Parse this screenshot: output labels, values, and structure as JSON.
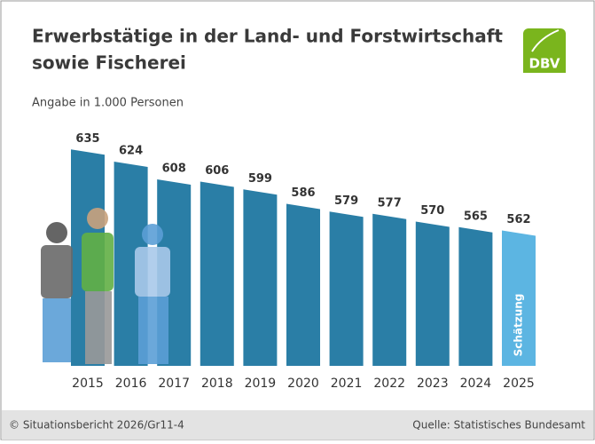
{
  "chart_data": {
    "type": "bar",
    "title_lines": [
      "Erwerbstätige in der Land- und Forstwirtschaft",
      "sowie Fischerei"
    ],
    "subtitle": "Angabe in 1.000 Personen",
    "logo": "DBV",
    "categories": [
      "2015",
      "2016",
      "2017",
      "2018",
      "2019",
      "2020",
      "2021",
      "2022",
      "2023",
      "2024",
      "2025"
    ],
    "values": [
      635,
      624,
      608,
      606,
      599,
      586,
      579,
      577,
      570,
      565,
      562
    ],
    "colors": [
      "#2a7ea6",
      "#2a7ea6",
      "#2a7ea6",
      "#2a7ea6",
      "#2a7ea6",
      "#2a7ea6",
      "#2a7ea6",
      "#2a7ea6",
      "#2a7ea6",
      "#2a7ea6",
      "#5cb5e2"
    ],
    "annotation": "Schätzung",
    "ylim": [
      440,
      640
    ],
    "footer_left": "© Situationsbericht 2026/Gr11-4",
    "footer_right": "Quelle: Statistisches Bundesamt"
  }
}
